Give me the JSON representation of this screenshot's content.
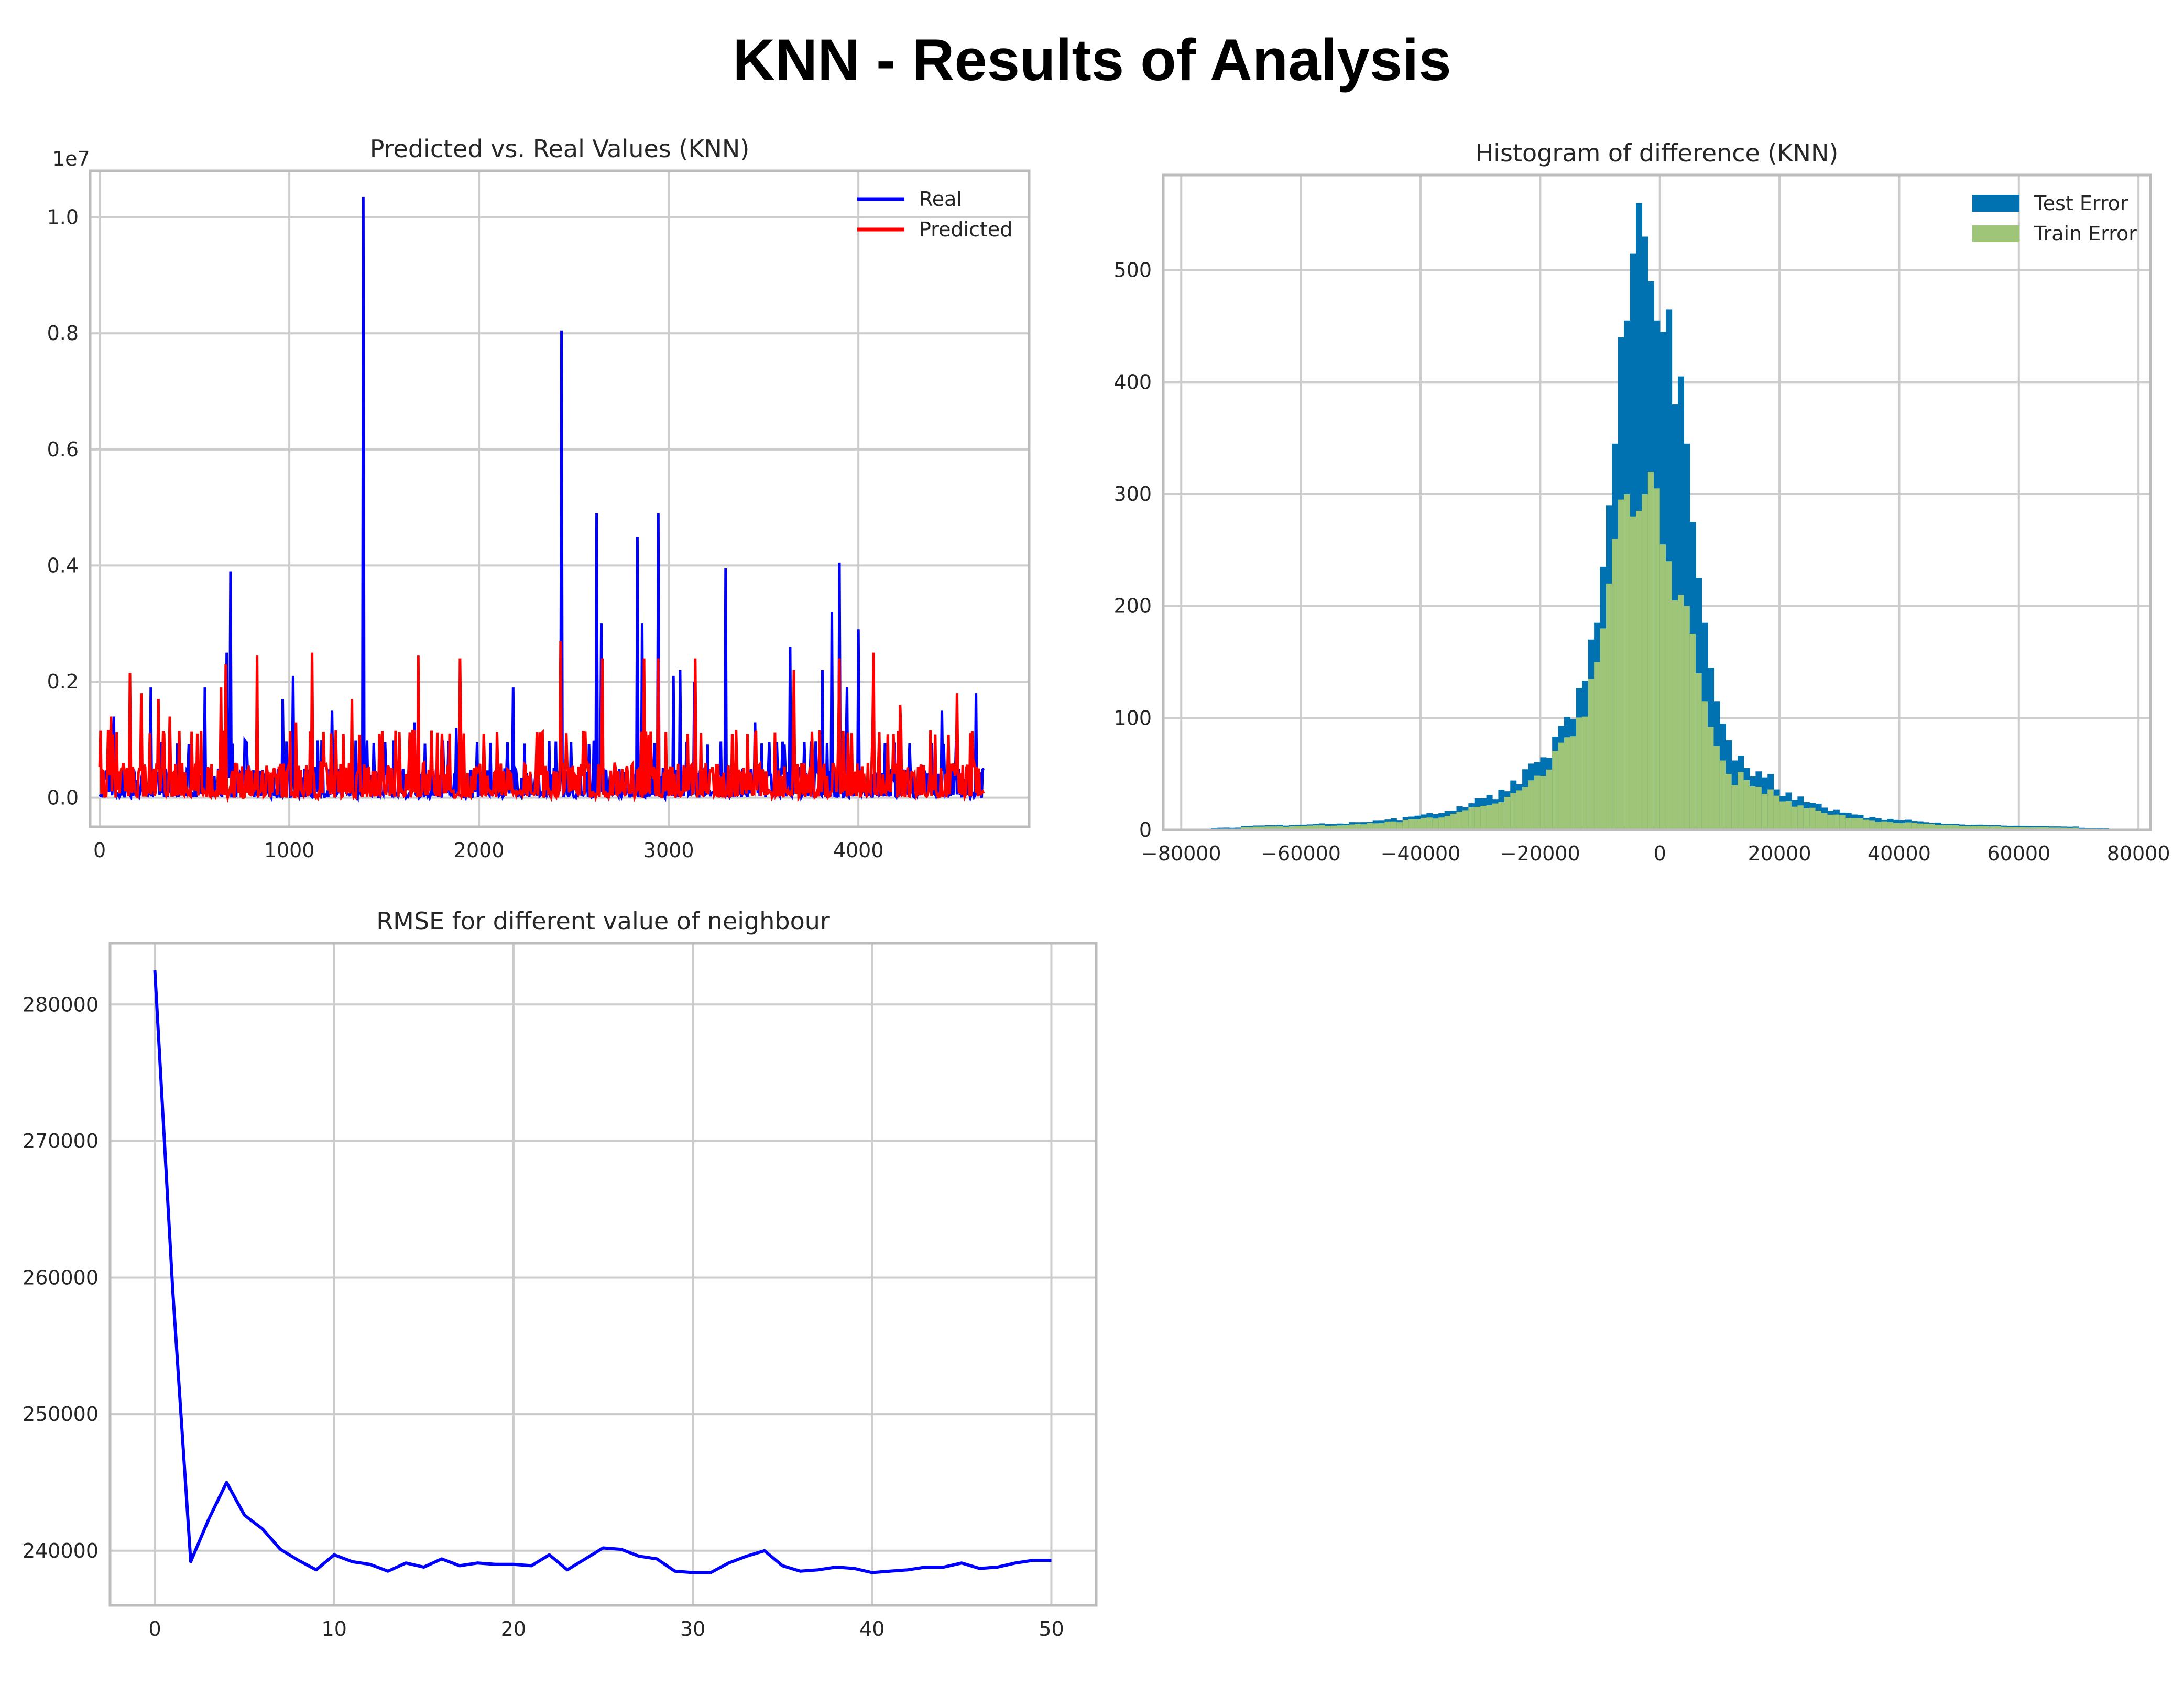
{
  "page_title": "KNN - Results of Analysis",
  "colors": {
    "real": "#0000ff",
    "predicted": "#ff0000",
    "test_error": "#0072b2",
    "train_error": "#9fc578",
    "rmse_line": "#0000ff",
    "grid": "#cccccc",
    "frame": "#bcbcbc"
  },
  "chart_data": [
    {
      "type": "line",
      "title": "Predicted vs. Real Values (KNN)",
      "xlabel": "",
      "ylabel": "",
      "y_offset_label": "1e7",
      "xlim": [
        -50,
        4900
      ],
      "ylim": [
        -0.05,
        1.08
      ],
      "x_ticks": [
        0,
        1000,
        2000,
        3000,
        4000
      ],
      "x_tick_labels": [
        "0",
        "1000",
        "2000",
        "3000",
        "4000"
      ],
      "y_ticks": [
        0.0,
        0.2,
        0.4,
        0.6,
        0.8,
        1.0
      ],
      "y_tick_labels": [
        "0.0",
        "0.2",
        "0.4",
        "0.6",
        "0.8",
        "1.0"
      ],
      "grid": true,
      "legend_position": "top-right",
      "series": [
        {
          "name": "Real",
          "color": "#0000ff",
          "peaks": [
            [
              75,
              0.14
            ],
            [
              270,
              0.19
            ],
            [
              555,
              0.19
            ],
            [
              670,
              0.25
            ],
            [
              690,
              0.39
            ],
            [
              965,
              0.17
            ],
            [
              1020,
              0.21
            ],
            [
              1225,
              0.15
            ],
            [
              1390,
              1.035
            ],
            [
              1660,
              0.13
            ],
            [
              1880,
              0.12
            ],
            [
              2180,
              0.19
            ],
            [
              2435,
              0.805
            ],
            [
              2620,
              0.49
            ],
            [
              2645,
              0.3
            ],
            [
              2835,
              0.45
            ],
            [
              2860,
              0.3
            ],
            [
              2945,
              0.49
            ],
            [
              3025,
              0.21
            ],
            [
              3060,
              0.22
            ],
            [
              3135,
              0.2
            ],
            [
              3300,
              0.395
            ],
            [
              3455,
              0.13
            ],
            [
              3640,
              0.26
            ],
            [
              3810,
              0.22
            ],
            [
              3860,
              0.32
            ],
            [
              3900,
              0.405
            ],
            [
              3940,
              0.19
            ],
            [
              4000,
              0.29
            ],
            [
              4440,
              0.15
            ],
            [
              4620,
              0.18
            ]
          ]
        },
        {
          "name": "Predicted",
          "color": "#ff0000",
          "peaks": [
            [
              60,
              0.14
            ],
            [
              160,
              0.215
            ],
            [
              220,
              0.18
            ],
            [
              310,
              0.17
            ],
            [
              370,
              0.14
            ],
            [
              640,
              0.19
            ],
            [
              665,
              0.23
            ],
            [
              830,
              0.245
            ],
            [
              1035,
              0.13
            ],
            [
              1120,
              0.25
            ],
            [
              1330,
              0.17
            ],
            [
              1680,
              0.245
            ],
            [
              1900,
              0.24
            ],
            [
              2430,
              0.27
            ],
            [
              2650,
              0.24
            ],
            [
              2870,
              0.24
            ],
            [
              2945,
              0.24
            ],
            [
              3140,
              0.24
            ],
            [
              3660,
              0.22
            ],
            [
              3900,
              0.24
            ],
            [
              4080,
              0.25
            ],
            [
              4220,
              0.16
            ],
            [
              4520,
              0.18
            ]
          ]
        }
      ]
    },
    {
      "type": "bar",
      "title": "Histogram of difference (KNN)",
      "xlabel": "",
      "ylabel": "",
      "xlim": [
        -83000,
        82000
      ],
      "ylim": [
        0,
        585
      ],
      "x_ticks": [
        -80000,
        -60000,
        -40000,
        -20000,
        0,
        20000,
        40000,
        60000,
        80000
      ],
      "x_tick_labels": [
        "−80000",
        "−60000",
        "−40000",
        "−20000",
        "0",
        "20000",
        "40000",
        "60000",
        "80000"
      ],
      "y_ticks": [
        0,
        100,
        200,
        300,
        400,
        500
      ],
      "y_tick_labels": [
        "0",
        "100",
        "200",
        "300",
        "400",
        "500"
      ],
      "grid": true,
      "legend_position": "top-right",
      "bin_width": 1000,
      "bin_centers_peak": [
        -11500,
        -10500,
        -9500,
        -8500,
        -7500,
        -6500,
        -5500,
        -4500,
        -3500,
        -2500,
        -1500,
        -500,
        500,
        1500,
        2500,
        3500,
        4500,
        5500,
        6500,
        7500,
        8500,
        9500,
        10500,
        11500,
        12500
      ],
      "test_peak": [
        170,
        185,
        235,
        290,
        345,
        440,
        455,
        515,
        560,
        530,
        490,
        455,
        445,
        465,
        380,
        405,
        345,
        275,
        225,
        185,
        145,
        115,
        95,
        80,
        62
      ],
      "train_peak": [
        135,
        150,
        180,
        220,
        260,
        295,
        300,
        280,
        285,
        300,
        320,
        305,
        255,
        240,
        205,
        210,
        200,
        175,
        140,
        115,
        92,
        75,
        62,
        50,
        40
      ],
      "series": [
        {
          "name": "Test Error",
          "color": "#0072b2"
        },
        {
          "name": "Train Error",
          "color": "#9fc578"
        }
      ]
    },
    {
      "type": "line",
      "title": "RMSE for different value of neighbour",
      "xlabel": "",
      "ylabel": "",
      "xlim": [
        -2.5,
        52.5
      ],
      "ylim": [
        236000,
        284500
      ],
      "x_ticks": [
        0,
        10,
        20,
        30,
        40,
        50
      ],
      "x_tick_labels": [
        "0",
        "10",
        "20",
        "30",
        "40",
        "50"
      ],
      "y_ticks": [
        240000,
        250000,
        260000,
        270000,
        280000
      ],
      "y_tick_labels": [
        "240000",
        "250000",
        "260000",
        "270000",
        "280000"
      ],
      "grid": true,
      "x": [
        0,
        1,
        2,
        3,
        4,
        5,
        6,
        7,
        8,
        9,
        10,
        11,
        12,
        13,
        14,
        15,
        16,
        17,
        18,
        19,
        20,
        21,
        22,
        23,
        24,
        25,
        26,
        27,
        28,
        29,
        30,
        31,
        32,
        33,
        34,
        35,
        36,
        37,
        38,
        39,
        40,
        41,
        42,
        43,
        44,
        45,
        46,
        47,
        48,
        49,
        50
      ],
      "series": [
        {
          "name": "",
          "color": "#0000ff",
          "values": [
            282500,
            259000,
            239200,
            242300,
            245000,
            242600,
            241600,
            240100,
            239300,
            238600,
            239700,
            239200,
            239000,
            238500,
            239100,
            238800,
            239400,
            238900,
            239100,
            239000,
            239000,
            238900,
            239700,
            238600,
            239400,
            240200,
            240100,
            239600,
            239400,
            238500,
            238400,
            238400,
            239100,
            239600,
            240000,
            238900,
            238500,
            238600,
            238800,
            238700,
            238400,
            238500,
            238600,
            238800,
            238800,
            239100,
            238700,
            238800,
            239100,
            239300,
            239300
          ]
        }
      ]
    }
  ]
}
